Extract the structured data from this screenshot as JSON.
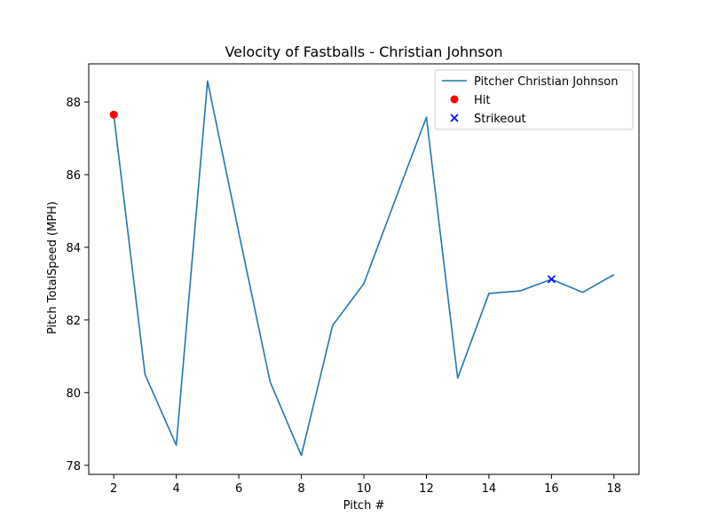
{
  "chart_data": {
    "type": "line",
    "title": "Velocity of Fastballs - Christian Johnson",
    "xlabel": "Pitch #",
    "ylabel": "Pitch TotalSpeed (MPH)",
    "xlim": [
      1.2,
      18.8
    ],
    "ylim": [
      77.75,
      89.05
    ],
    "xticks": [
      2,
      4,
      6,
      8,
      10,
      12,
      14,
      16,
      18
    ],
    "yticks": [
      78,
      80,
      82,
      84,
      86,
      88
    ],
    "grid": false,
    "legend_position": "top-right",
    "series": [
      {
        "name": "Pitcher Christian Johnson",
        "type": "line",
        "color": "#1f77b4",
        "x": [
          2,
          3,
          4,
          5,
          6,
          7,
          8,
          9,
          10,
          11,
          12,
          13,
          14,
          15,
          16,
          17,
          18
        ],
        "y": [
          87.65,
          80.5,
          78.55,
          88.58,
          84.4,
          80.3,
          78.27,
          81.85,
          83.0,
          85.3,
          87.58,
          80.4,
          82.73,
          82.8,
          83.12,
          82.76,
          83.25
        ]
      },
      {
        "name": "Hit",
        "type": "scatter",
        "marker": "circle",
        "color": "#ff0000",
        "x": [
          2
        ],
        "y": [
          87.65
        ]
      },
      {
        "name": "Strikeout",
        "type": "scatter",
        "marker": "x",
        "color": "#0000ff",
        "x": [
          16
        ],
        "y": [
          83.12
        ]
      }
    ]
  }
}
